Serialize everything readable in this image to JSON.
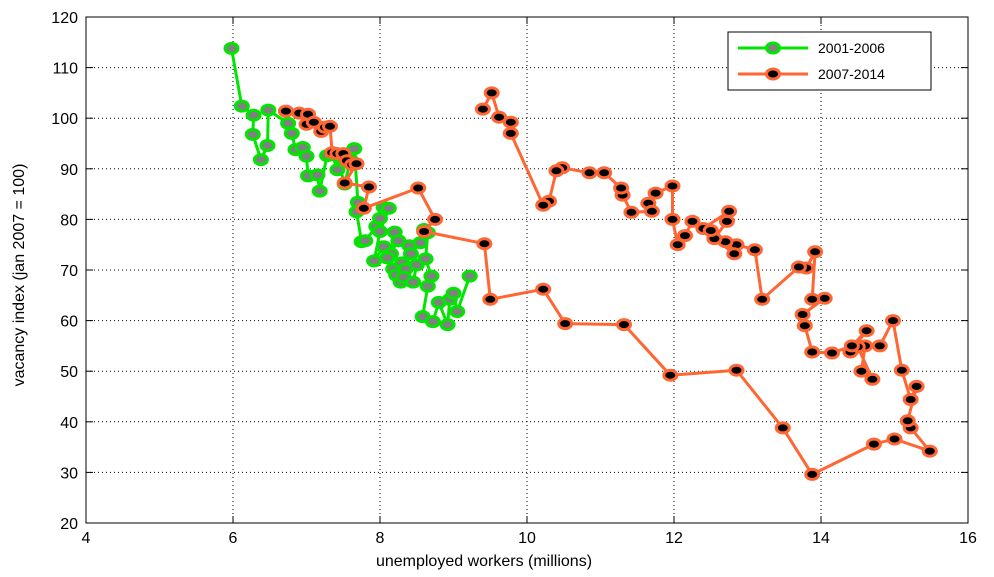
{
  "chart_data": {
    "type": "line",
    "title": "",
    "xlabel": "unemployed workers (millions)",
    "ylabel": "vacancy index  (jan 2007 = 100)",
    "xlim": [
      4,
      16
    ],
    "ylim": [
      20,
      120
    ],
    "xticks": [
      "4",
      "6",
      "8",
      "10",
      "12",
      "14",
      "16"
    ],
    "yticks": [
      "20",
      "30",
      "40",
      "50",
      "60",
      "70",
      "80",
      "90",
      "100",
      "110",
      "120"
    ],
    "grid": true,
    "legend_position": "top-right",
    "series": [
      {
        "name": "2001-2006",
        "color": "#00e600",
        "marker_color": "#808080",
        "points": [
          [
            5.98,
            113.8
          ],
          [
            6.12,
            102.4
          ],
          [
            6.28,
            100.6
          ],
          [
            6.27,
            96.8
          ],
          [
            6.38,
            91.8
          ],
          [
            6.47,
            94.6
          ],
          [
            6.48,
            101.6
          ],
          [
            6.75,
            99.0
          ],
          [
            6.8,
            97.0
          ],
          [
            6.85,
            93.8
          ],
          [
            6.95,
            94.2
          ],
          [
            7.0,
            92.5
          ],
          [
            7.02,
            88.6
          ],
          [
            7.15,
            88.8
          ],
          [
            7.18,
            85.6
          ],
          [
            7.28,
            92.6
          ],
          [
            7.35,
            92.8
          ],
          [
            7.42,
            89.8
          ],
          [
            7.4,
            93.0
          ],
          [
            7.52,
            87.0
          ],
          [
            7.6,
            91.8
          ],
          [
            7.65,
            94.0
          ],
          [
            7.7,
            83.4
          ],
          [
            7.68,
            81.5
          ],
          [
            7.75,
            75.6
          ],
          [
            7.8,
            75.8
          ],
          [
            7.95,
            78.6
          ],
          [
            8.0,
            80.2
          ],
          [
            8.05,
            82.4
          ],
          [
            8.12,
            82.2
          ],
          [
            8.0,
            77.6
          ],
          [
            7.92,
            71.8
          ],
          [
            8.05,
            74.6
          ],
          [
            8.15,
            73.2
          ],
          [
            8.2,
            77.5
          ],
          [
            8.25,
            75.8
          ],
          [
            8.1,
            72.4
          ],
          [
            8.18,
            70.2
          ],
          [
            8.3,
            71.4
          ],
          [
            8.22,
            69.0
          ],
          [
            8.28,
            67.6
          ],
          [
            8.35,
            70.2
          ],
          [
            8.4,
            74.8
          ],
          [
            8.32,
            68.6
          ],
          [
            8.45,
            67.6
          ],
          [
            8.5,
            71.0
          ],
          [
            8.42,
            73.2
          ],
          [
            8.55,
            75.4
          ],
          [
            8.6,
            78.0
          ],
          [
            8.65,
            77.4
          ],
          [
            8.62,
            72.2
          ],
          [
            8.7,
            68.8
          ],
          [
            8.65,
            66.8
          ],
          [
            8.58,
            60.8
          ],
          [
            8.72,
            59.8
          ],
          [
            8.8,
            63.6
          ],
          [
            8.92,
            59.2
          ],
          [
            8.95,
            64.2
          ],
          [
            9.0,
            65.4
          ],
          [
            9.05,
            61.8
          ],
          [
            9.22,
            68.8
          ]
        ]
      },
      {
        "name": "2007-2014",
        "color": "#ff6633",
        "marker_color": "#000000",
        "points": [
          [
            6.72,
            101.4
          ],
          [
            6.9,
            101.0
          ],
          [
            7.0,
            98.8
          ],
          [
            7.02,
            100.8
          ],
          [
            7.1,
            99.2
          ],
          [
            7.2,
            97.4
          ],
          [
            7.25,
            98.2
          ],
          [
            7.32,
            98.4
          ],
          [
            7.35,
            93.2
          ],
          [
            7.42,
            93.0
          ],
          [
            7.5,
            93.0
          ],
          [
            7.55,
            91.6
          ],
          [
            7.62,
            90.8
          ],
          [
            7.68,
            91.0
          ],
          [
            7.52,
            87.2
          ],
          [
            7.85,
            86.4
          ],
          [
            7.78,
            82.2
          ],
          [
            8.52,
            86.2
          ],
          [
            8.75,
            80.0
          ],
          [
            8.6,
            77.6
          ],
          [
            9.42,
            75.2
          ],
          [
            9.5,
            64.2
          ],
          [
            10.22,
            66.2
          ],
          [
            10.52,
            59.4
          ],
          [
            11.32,
            59.2
          ],
          [
            11.95,
            49.2
          ],
          [
            12.85,
            50.2
          ],
          [
            13.48,
            38.8
          ],
          [
            13.88,
            29.6
          ],
          [
            14.72,
            35.6
          ],
          [
            15.0,
            36.6
          ],
          [
            15.48,
            34.2
          ],
          [
            15.22,
            38.8
          ],
          [
            15.18,
            40.2
          ],
          [
            15.3,
            47.0
          ],
          [
            15.22,
            44.4
          ],
          [
            15.1,
            50.2
          ],
          [
            14.98,
            60.0
          ],
          [
            14.8,
            55.0
          ],
          [
            14.6,
            55.0
          ],
          [
            14.55,
            50.0
          ],
          [
            14.7,
            48.4
          ],
          [
            14.5,
            54.8
          ],
          [
            14.4,
            53.8
          ],
          [
            14.62,
            58.0
          ],
          [
            14.42,
            55.0
          ],
          [
            14.15,
            53.6
          ],
          [
            13.88,
            53.8
          ],
          [
            13.78,
            59.0
          ],
          [
            13.75,
            61.2
          ],
          [
            14.05,
            64.4
          ],
          [
            13.88,
            64.2
          ],
          [
            13.92,
            73.6
          ],
          [
            13.8,
            70.4
          ],
          [
            13.7,
            70.6
          ],
          [
            13.2,
            64.2
          ],
          [
            13.1,
            74.0
          ],
          [
            12.85,
            75.0
          ],
          [
            12.7,
            75.6
          ],
          [
            12.82,
            73.2
          ],
          [
            12.55,
            76.2
          ],
          [
            12.72,
            79.6
          ],
          [
            12.75,
            81.6
          ],
          [
            12.4,
            78.2
          ],
          [
            12.5,
            77.8
          ],
          [
            12.25,
            79.6
          ],
          [
            12.15,
            76.8
          ],
          [
            12.05,
            75.0
          ],
          [
            11.98,
            80.0
          ],
          [
            11.98,
            86.6
          ],
          [
            11.75,
            85.2
          ],
          [
            11.65,
            83.2
          ],
          [
            11.7,
            81.6
          ],
          [
            11.42,
            81.4
          ],
          [
            11.3,
            84.8
          ],
          [
            11.28,
            86.2
          ],
          [
            11.05,
            89.2
          ],
          [
            10.85,
            89.2
          ],
          [
            10.48,
            90.2
          ],
          [
            10.4,
            89.6
          ],
          [
            10.3,
            83.6
          ],
          [
            10.22,
            82.8
          ],
          [
            9.78,
            97.0
          ],
          [
            9.78,
            99.2
          ],
          [
            9.62,
            100.2
          ],
          [
            9.52,
            105.0
          ],
          [
            9.4,
            101.8
          ]
        ]
      }
    ]
  }
}
